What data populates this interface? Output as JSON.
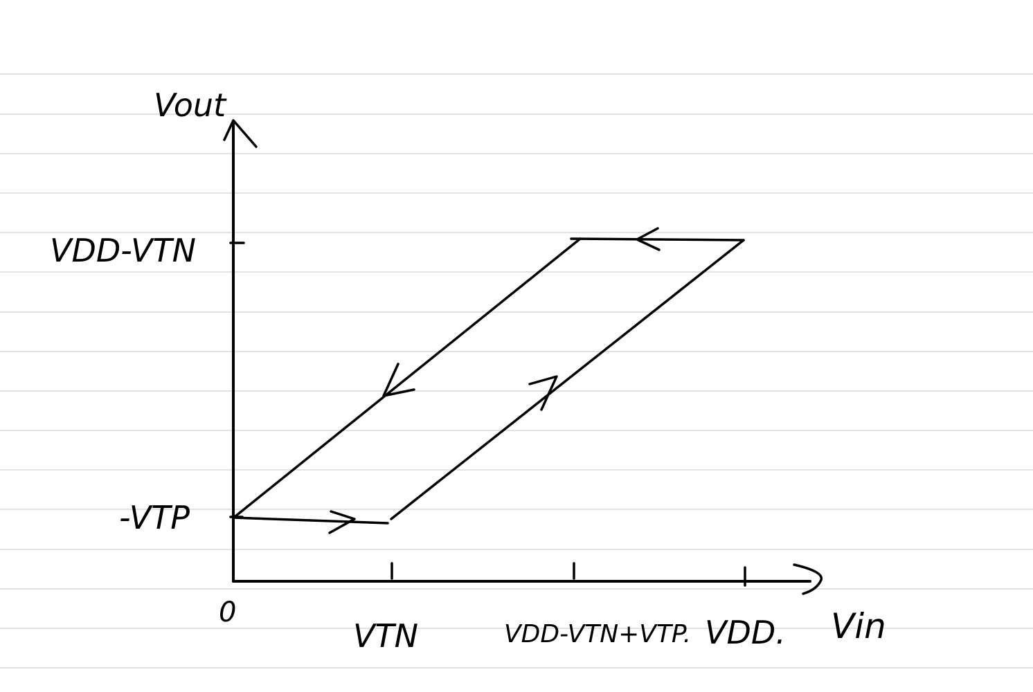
{
  "diagram": {
    "type": "hysteresis-transfer-curve",
    "axes": {
      "x_label": "Vin",
      "y_label": "Vout",
      "origin_label": "0"
    },
    "x_ticks": [
      "VTN",
      "VDD-VTN+VTP.",
      "VDD."
    ],
    "y_ticks": [
      "VDD-VTN",
      "-VTP"
    ],
    "colors": {
      "ink": "#000000",
      "ruled_lines": "#d9d9d9",
      "paper": "#ffffff"
    }
  }
}
